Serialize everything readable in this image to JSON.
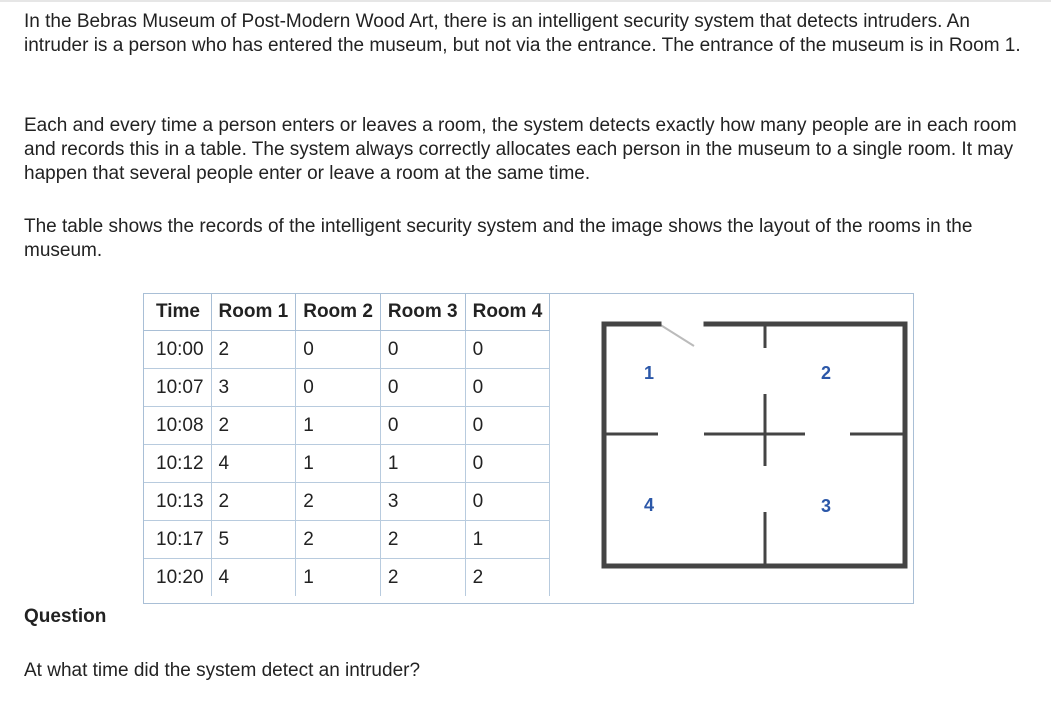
{
  "intro": {
    "p1": "In the Bebras Museum of Post-Modern Wood Art, there is an intelligent security system that detects intruders. An intruder is a person who has entered the museum, but not via the entrance. The entrance of the museum is in Room 1.",
    "p2": "Each and every time a person enters or leaves a room, the system detects exactly how many people are in each room and records this in a table. The system always correctly allocates each person in the museum to a single room. It may happen that several people enter or leave a room at the same time.",
    "p3": "The table shows the records of the intelligent security system and the image shows the layout of the rooms in the museum."
  },
  "records": {
    "headers": [
      "Time",
      "Room 1",
      "Room 2",
      "Room 3",
      "Room 4"
    ],
    "rows": [
      [
        "10:00",
        "2",
        "0",
        "0",
        "0"
      ],
      [
        "10:07",
        "3",
        "0",
        "0",
        "0"
      ],
      [
        "10:08",
        "2",
        "1",
        "0",
        "0"
      ],
      [
        "10:12",
        "4",
        "1",
        "1",
        "0"
      ],
      [
        "10:13",
        "2",
        "2",
        "3",
        "0"
      ],
      [
        "10:17",
        "5",
        "2",
        "2",
        "1"
      ],
      [
        "10:20",
        "4",
        "1",
        "2",
        "2"
      ]
    ]
  },
  "floorplan": {
    "room_labels": [
      "1",
      "2",
      "3",
      "4"
    ],
    "wall_color": "#444444",
    "door_color": "#bbbbbb",
    "label_color": "#2b57a8"
  },
  "question": {
    "label": "Question",
    "text": "At what time did the system detect an intruder?"
  }
}
